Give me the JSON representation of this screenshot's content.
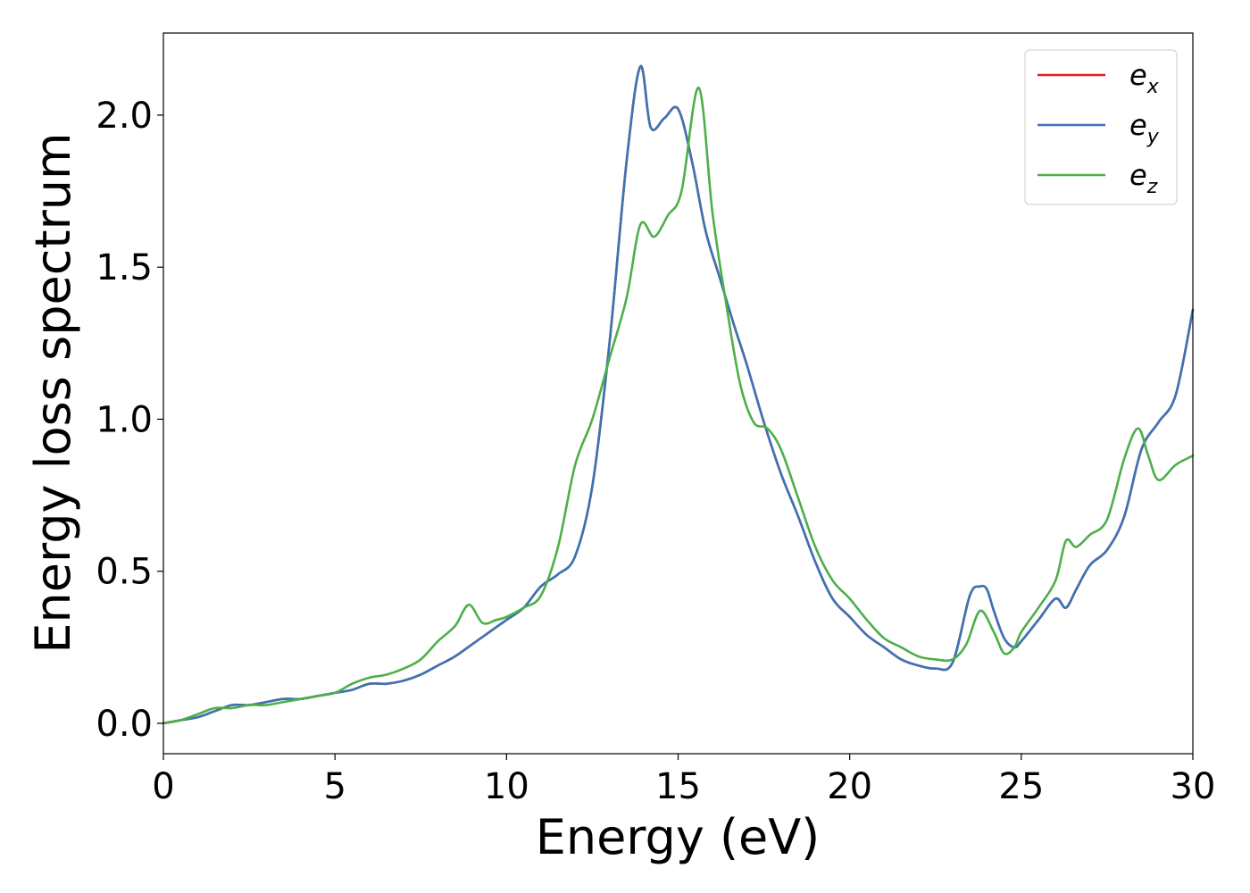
{
  "chart_data": {
    "type": "line",
    "title": "",
    "xlabel": "Energy (eV)",
    "ylabel": "Energy loss spectrum",
    "xlim": [
      0,
      30
    ],
    "ylim": [
      -0.1,
      2.27
    ],
    "xticks": [
      0,
      5,
      10,
      15,
      20,
      25,
      30
    ],
    "xtick_labels": [
      "0",
      "5",
      "10",
      "15",
      "20",
      "25",
      "30"
    ],
    "yticks": [
      0.0,
      0.5,
      1.0,
      1.5,
      2.0
    ],
    "ytick_labels": [
      "0.0",
      "0.5",
      "1.0",
      "1.5",
      "2.0"
    ],
    "grid": false,
    "legend_position": "top-right",
    "series": [
      {
        "name": "e_x",
        "label_base": "e",
        "label_sub": "x",
        "color": "#e41a1c",
        "x": [
          0,
          0.5,
          1,
          1.5,
          2,
          2.5,
          3,
          3.5,
          4,
          4.5,
          5,
          5.5,
          6,
          6.5,
          7,
          7.5,
          8,
          8.5,
          9,
          9.5,
          10,
          10.5,
          11,
          11.5,
          12,
          12.5,
          13,
          13.5,
          13.9,
          14.2,
          14.6,
          15,
          15.4,
          15.8,
          16.2,
          16.6,
          17,
          17.5,
          18,
          18.5,
          19,
          19.5,
          20,
          20.5,
          21,
          21.5,
          22,
          22.5,
          23,
          23.5,
          23.8,
          24,
          24.2,
          24.5,
          24.8,
          25,
          25.5,
          26,
          26.3,
          26.6,
          27,
          27.5,
          28,
          28.5,
          29,
          29.5,
          30
        ],
        "values": [
          0,
          0.01,
          0.02,
          0.04,
          0.06,
          0.06,
          0.07,
          0.08,
          0.08,
          0.09,
          0.1,
          0.11,
          0.13,
          0.13,
          0.14,
          0.16,
          0.19,
          0.22,
          0.26,
          0.3,
          0.34,
          0.38,
          0.45,
          0.49,
          0.55,
          0.78,
          1.25,
          1.85,
          2.16,
          1.96,
          1.99,
          2.02,
          1.85,
          1.62,
          1.47,
          1.32,
          1.18,
          0.99,
          0.82,
          0.68,
          0.53,
          0.41,
          0.35,
          0.29,
          0.25,
          0.21,
          0.19,
          0.18,
          0.2,
          0.42,
          0.45,
          0.44,
          0.37,
          0.28,
          0.25,
          0.27,
          0.34,
          0.41,
          0.38,
          0.44,
          0.52,
          0.57,
          0.68,
          0.9,
          0.99,
          1.08,
          1.36
        ]
      },
      {
        "name": "e_y",
        "label_base": "e",
        "label_sub": "y",
        "color": "#3a74b5",
        "x": [
          0,
          0.5,
          1,
          1.5,
          2,
          2.5,
          3,
          3.5,
          4,
          4.5,
          5,
          5.5,
          6,
          6.5,
          7,
          7.5,
          8,
          8.5,
          9,
          9.5,
          10,
          10.5,
          11,
          11.5,
          12,
          12.5,
          13,
          13.5,
          13.9,
          14.2,
          14.6,
          15,
          15.4,
          15.8,
          16.2,
          16.6,
          17,
          17.5,
          18,
          18.5,
          19,
          19.5,
          20,
          20.5,
          21,
          21.5,
          22,
          22.5,
          23,
          23.5,
          23.8,
          24,
          24.2,
          24.5,
          24.8,
          25,
          25.5,
          26,
          26.3,
          26.6,
          27,
          27.5,
          28,
          28.5,
          29,
          29.5,
          30
        ],
        "values": [
          0,
          0.01,
          0.02,
          0.04,
          0.06,
          0.06,
          0.07,
          0.08,
          0.08,
          0.09,
          0.1,
          0.11,
          0.13,
          0.13,
          0.14,
          0.16,
          0.19,
          0.22,
          0.26,
          0.3,
          0.34,
          0.38,
          0.45,
          0.49,
          0.55,
          0.78,
          1.25,
          1.85,
          2.16,
          1.96,
          1.99,
          2.02,
          1.85,
          1.62,
          1.47,
          1.32,
          1.18,
          0.99,
          0.82,
          0.68,
          0.53,
          0.41,
          0.35,
          0.29,
          0.25,
          0.21,
          0.19,
          0.18,
          0.2,
          0.42,
          0.45,
          0.44,
          0.37,
          0.28,
          0.25,
          0.27,
          0.34,
          0.41,
          0.38,
          0.44,
          0.52,
          0.57,
          0.68,
          0.9,
          0.99,
          1.08,
          1.36
        ]
      },
      {
        "name": "e_z",
        "label_base": "e",
        "label_sub": "z",
        "color": "#4daf4a",
        "x": [
          0,
          0.5,
          1,
          1.5,
          2,
          2.5,
          3,
          3.5,
          4,
          4.5,
          5,
          5.5,
          6,
          6.5,
          7,
          7.5,
          8,
          8.5,
          8.9,
          9.3,
          9.7,
          10,
          10.5,
          11,
          11.5,
          12,
          12.5,
          13,
          13.5,
          13.9,
          14.3,
          14.7,
          15.1,
          15.6,
          16,
          16.4,
          16.8,
          17.2,
          17.6,
          18,
          18.5,
          19,
          19.5,
          20,
          20.5,
          21,
          21.5,
          22,
          22.5,
          23,
          23.4,
          23.8,
          24.2,
          24.5,
          24.8,
          25,
          25.5,
          26,
          26.3,
          26.6,
          27,
          27.5,
          28,
          28.4,
          28.7,
          29,
          29.5,
          30
        ],
        "values": [
          0,
          0.01,
          0.03,
          0.05,
          0.05,
          0.06,
          0.06,
          0.07,
          0.08,
          0.09,
          0.1,
          0.13,
          0.15,
          0.16,
          0.18,
          0.21,
          0.27,
          0.32,
          0.39,
          0.33,
          0.34,
          0.35,
          0.38,
          0.42,
          0.58,
          0.85,
          1.0,
          1.2,
          1.4,
          1.64,
          1.6,
          1.67,
          1.75,
          2.09,
          1.68,
          1.38,
          1.12,
          0.99,
          0.97,
          0.9,
          0.74,
          0.58,
          0.47,
          0.41,
          0.34,
          0.28,
          0.25,
          0.22,
          0.21,
          0.21,
          0.26,
          0.37,
          0.3,
          0.23,
          0.25,
          0.3,
          0.38,
          0.47,
          0.6,
          0.58,
          0.62,
          0.67,
          0.87,
          0.97,
          0.88,
          0.8,
          0.85,
          0.88
        ]
      }
    ]
  }
}
